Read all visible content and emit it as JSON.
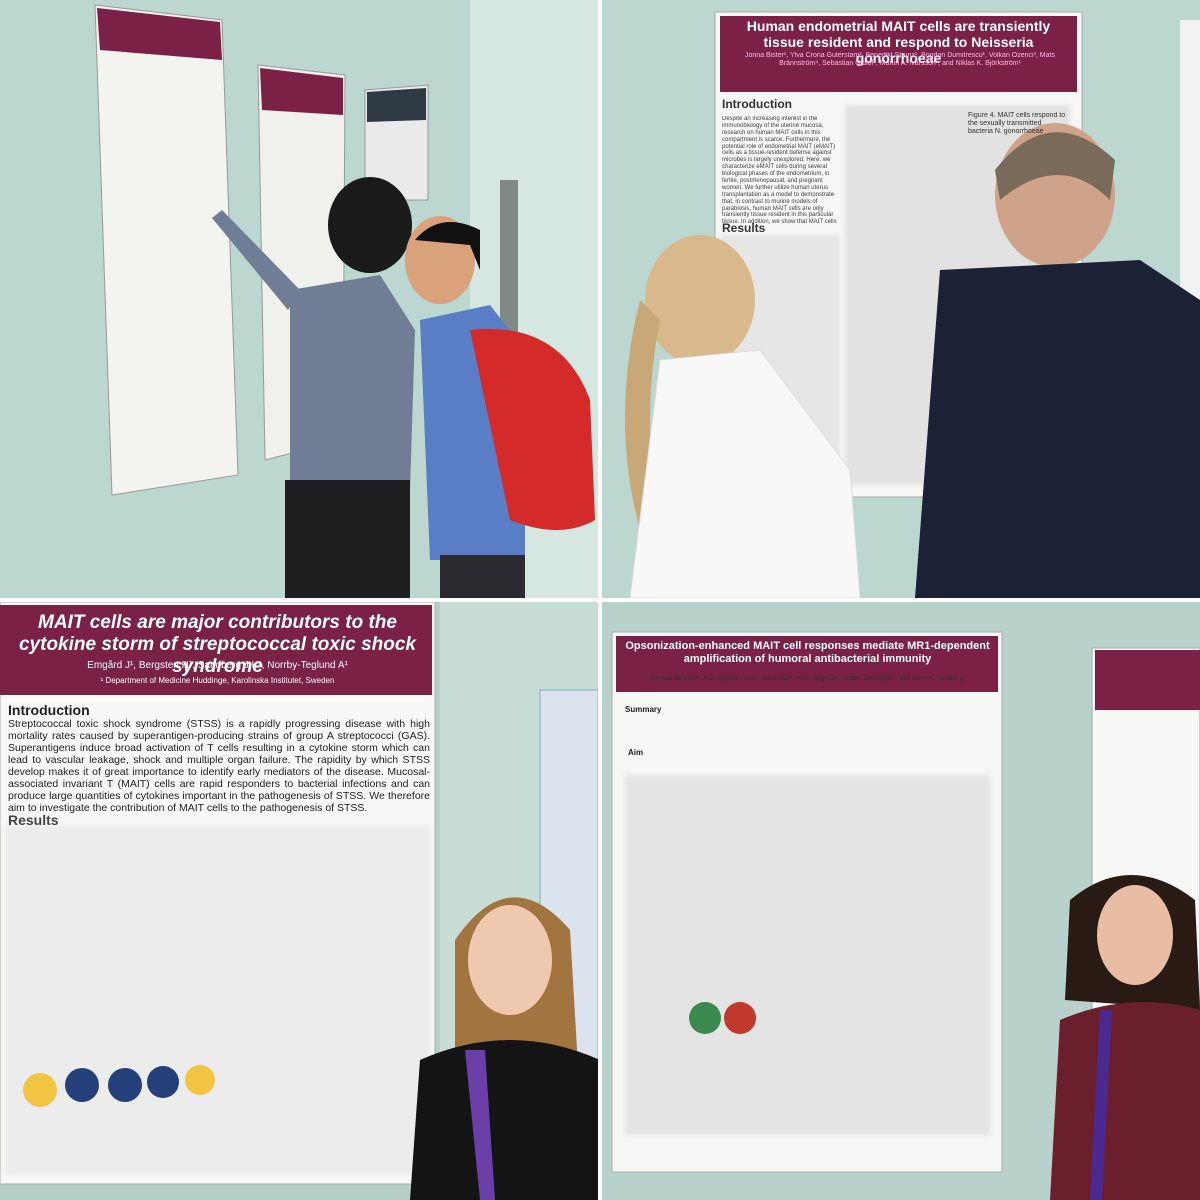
{
  "posters": [
    {
      "title": "Human endometrial MAIT cells are transiently tissue resident and respond to Neisseria gonorrhoeae",
      "authors": "Jonna Bister¹, Ylva Crona Guterstam², Benedikt Strunz¹, Bogdan Dumitrescu¹, Volkan Özenci³, Mats Brännström⁴, Sebastian Gidlöf², Martin A. Ivarsson¹, and Niklas K. Björkström¹",
      "sections": [
        "Introduction",
        "Results"
      ],
      "intro": "Despite an increasing interest in the immunobiology of the uterine mucosa, research on human MAIT cells in this compartment is scarce. Furthermore, the potential role of endometrial MAIT (eMAIT) cells as a tissue-resident defense against microbes is largely unexplored. Here, we characterize eMAIT cells during several biological phases of the endometrium, in fertile, postmenopausal, and pregnant women. We further utilize human uterus transplantation as a model to demonstrate that, in contrast to murine models of parabiosis, human MAIT cells are only transiently tissue resident in this particular tissue. In addition, we show that MAIT cells are able to respond to the clinically relevant pathogen N. gonorrhoeae.",
      "figure": "Figure 4. MAIT cells respond to the sexually transmitted bacteria N. gonorrhoeae"
    },
    {
      "title": "MAIT cells are major contributors to the cytokine storm of streptococcal toxic shock syndrome",
      "authors": "Emgård J¹, Bergsten H¹, Sandberg J K¹, Norrby-Teglund A¹",
      "affiliation": "¹ Department of Medicine Huddinge, Karolinska Institutet, Sweden",
      "sections": [
        "Introduction",
        "Results"
      ],
      "intro": "Streptococcal toxic shock syndrome (STSS) is a rapidly progressing disease with high mortality rates caused by superantigen-producing strains of group A streptococci (GAS). Superantigens induce broad activation of T cells resulting in a cytokine storm which can lead to vascular leakage, shock and multiple organ failure. The rapidity by which STSS develop makes it of great importance to identify early mediators of the disease. Mucosal-associated invariant T (MAIT) cells are rapid responders to bacterial infections and can produce large quantities of cytokines important in the pathogenesis of STSS. We therefore aim to investigate the contribution of MAIT cells to the pathogenesis of STSS."
    },
    {
      "title": "Opsonization-enhanced MAIT cell responses mediate MR1-dependent amplification of humoral antibacterial immunity",
      "authors": "Caroline Boulouis¹, Jean-Baptiste Gorin¹, Joana Dias¹, Peter Bergman¹,², Edwin Leeansyah¹,³ and Johan K. Sandberg¹",
      "sections": [
        "Summary",
        "Aim"
      ]
    }
  ]
}
